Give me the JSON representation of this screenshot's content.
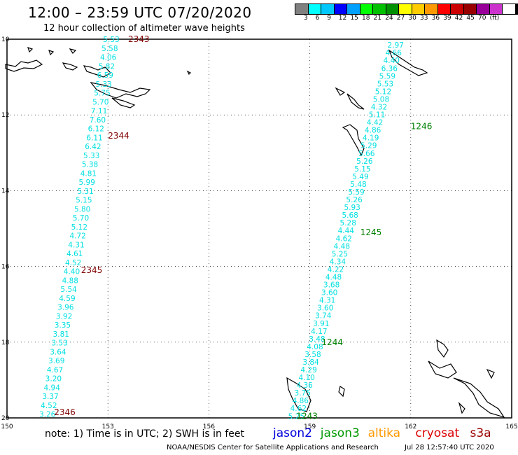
{
  "header": {
    "title": "12:00 – 23:59 UTC 07/20/2020",
    "subtitle": "12 hour collection of altimeter wave heights"
  },
  "color_scale": {
    "colors": [
      "#808080",
      "#00ffff",
      "#00c8ff",
      "#0000ff",
      "#00a0ff",
      "#00ff00",
      "#00c000",
      "#009000",
      "#ffff00",
      "#ffcc00",
      "#ff9900",
      "#ff0000",
      "#cc0000",
      "#990000",
      "#990099",
      "#cc33cc",
      "#ffffff",
      "#000000"
    ],
    "labels": [
      "3",
      "6",
      "9",
      "12",
      "15",
      "18",
      "21",
      "24",
      "27",
      "30",
      "33",
      "36",
      "39",
      "42",
      "45",
      "70",
      "(ft)"
    ]
  },
  "axes": {
    "x_ticks": [
      "150",
      "153",
      "156",
      "159",
      "162",
      "165"
    ],
    "y_ticks": [
      "10",
      "12",
      "14",
      "16",
      "18",
      "20"
    ]
  },
  "tracks": [
    {
      "satellite": "cryosat",
      "color": "#00e0e0",
      "time_color": "#800000",
      "start": {
        "lon": 153.1,
        "lat": 10.0
      },
      "end": {
        "lon": 151.2,
        "lat": 19.9
      },
      "values": [
        "5.53",
        "5.58",
        "4.06",
        "5.82",
        "6.59",
        "5.33",
        "5.75",
        "5.70",
        "7.11",
        "7.60",
        "6.12",
        "6.11",
        "6.42",
        "5.33",
        "5.38",
        "4.81",
        "5.99",
        "5.31",
        "5.15",
        "5.80",
        "5.70",
        "5.12",
        "4.72",
        "4.31",
        "4.61",
        "4.52",
        "4.40",
        "4.88",
        "5.54",
        "4.59",
        "3.96",
        "3.92",
        "3.35",
        "3.81",
        "3.53",
        "3.64",
        "3.69",
        "4.67",
        "3.20",
        "4.94",
        "3.37",
        "4.52",
        "3.26"
      ],
      "times": [
        {
          "label": "2343",
          "lon": 153.6,
          "lat": 10.0
        },
        {
          "label": "2344",
          "lon": 153.0,
          "lat": 12.55
        },
        {
          "label": "2345",
          "lon": 152.2,
          "lat": 16.1
        },
        {
          "label": "2346",
          "lon": 151.4,
          "lat": 19.85
        }
      ]
    },
    {
      "satellite": "jason3",
      "color": "#00e0e0",
      "time_color": "#008000",
      "start": {
        "lon": 161.55,
        "lat": 10.15
      },
      "end": {
        "lon": 158.6,
        "lat": 19.95
      },
      "values": [
        "2.97",
        "4.66",
        "4.40",
        "6.36",
        "5.59",
        "5.53",
        "5.12",
        "5.08",
        "4.32",
        "5.11",
        "4.42",
        "4.86",
        "4.19",
        "5.29",
        "5.66",
        "5.26",
        "5.15",
        "5.49",
        "5.48",
        "5.59",
        "5.26",
        "5.93",
        "5.68",
        "5.28",
        "4.44",
        "4.62",
        "4.48",
        "5.25",
        "4.34",
        "4.22",
        "4.48",
        "3.68",
        "3.60",
        "4.31",
        "3.60",
        "3.74",
        "3.91",
        "4.17",
        "3.48",
        "4.08",
        "3.58",
        "3.84",
        "4.29",
        "4.10",
        "4.36",
        "3.75",
        "4.86",
        "4.62",
        "5.25"
      ],
      "times": [
        {
          "label": "1246",
          "lon": 162.0,
          "lat": 12.3
        },
        {
          "label": "1245",
          "lon": 160.5,
          "lat": 15.1
        },
        {
          "label": "1244",
          "lon": 159.35,
          "lat": 18.0
        },
        {
          "label": "1243",
          "lon": 158.6,
          "lat": 19.95
        }
      ]
    }
  ],
  "footer": {
    "note": "note:  1) Time is in UTC;  2) SWH is in feet",
    "credit": "NOAA/NESDIS Center for Satellite Applications and Research",
    "timestamp": "Jul 28 12:57:40 UTC 2020",
    "satellites": [
      {
        "name": "jason2",
        "color": "#0000dd"
      },
      {
        "name": "jason3",
        "color": "#009900"
      },
      {
        "name": "altika",
        "color": "#ff9900"
      },
      {
        "name": "cryosat",
        "color": "#dd0000"
      },
      {
        "name": "s3a",
        "color": "#990000"
      }
    ]
  }
}
